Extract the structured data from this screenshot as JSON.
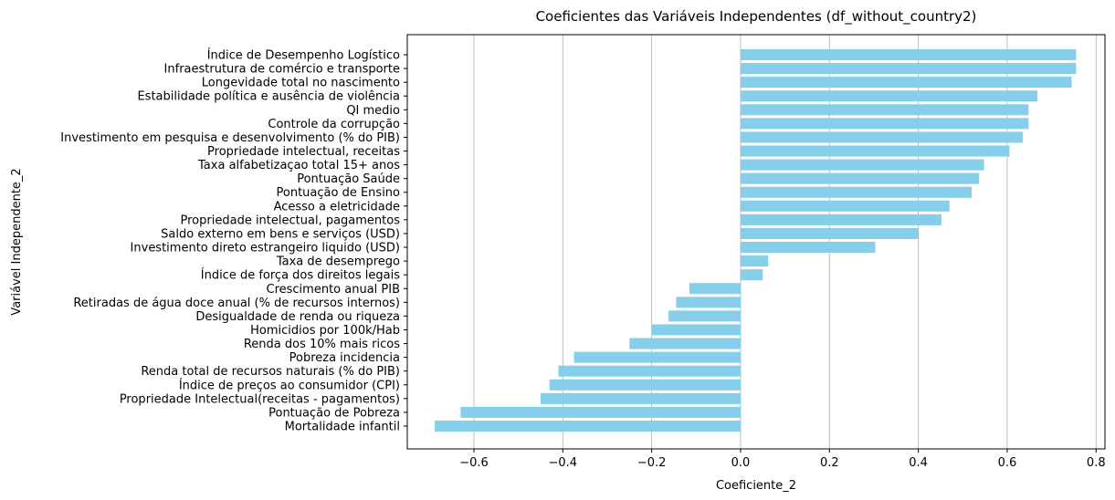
{
  "chart_data": {
    "type": "bar",
    "orientation": "horizontal",
    "title": "Coeficientes das Variáveis Independentes (df_without_country2)",
    "xlabel": "Coeficiente_2",
    "ylabel": "Variável Independente_2",
    "xlim": [
      -0.75,
      0.82
    ],
    "xticks": [
      -0.6,
      -0.4,
      -0.2,
      0.0,
      0.2,
      0.4,
      0.6,
      0.8
    ],
    "xtick_labels": [
      "−0.6",
      "−0.4",
      "−0.2",
      "0.0",
      "0.2",
      "0.4",
      "0.6",
      "0.8"
    ],
    "grid": "x-axis",
    "bar_color": "#87ceeb",
    "categories": [
      "Índice de Desempenho Logístico",
      "Infraestrutura de comércio e transporte",
      "Longevidade total no nascimento",
      "Estabilidade política e ausência de violência",
      "QI medio",
      "Controle da corrupção",
      "Investimento em pesquisa e desenvolvimento (% do PIB)",
      "Propriedade intelectual, receitas",
      "Taxa alfabetizaçao total 15+ anos",
      "Pontuação Saúde",
      "Pontuação de Ensino",
      "Acesso a eletricidade",
      "Propriedade intelectual, pagamentos",
      "Saldo externo em bens e serviços (USD)",
      "Investimento direto estrangeiro liquido (USD)",
      "Taxa de desemprego",
      "Índice de força dos direitos legais",
      "Crescimento anual PIB",
      "Retiradas de água doce anual (% de recursos internos)",
      "Desigualdade de renda ou riqueza",
      "Homicidios por 100k/Hab",
      "Renda dos 10% mais ricos",
      "Pobreza incidencia",
      "Renda total de recursos naturais (% do PIB)",
      "Índice de preços ao consumidor (CPI)",
      "Propriedade Intelectual(receitas - pagamentos)",
      "Pontuação de Pobreza",
      "Mortalidade infantil"
    ],
    "values": [
      0.755,
      0.755,
      0.745,
      0.668,
      0.648,
      0.648,
      0.635,
      0.605,
      0.548,
      0.537,
      0.52,
      0.47,
      0.452,
      0.4,
      0.303,
      0.062,
      0.05,
      -0.115,
      -0.145,
      -0.162,
      -0.2,
      -0.25,
      -0.375,
      -0.41,
      -0.43,
      -0.45,
      -0.63,
      -0.688
    ]
  }
}
